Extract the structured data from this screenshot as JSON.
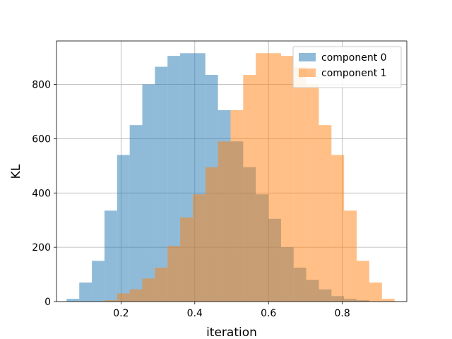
{
  "chart_data": {
    "type": "bar",
    "subtype": "overlapping-histogram",
    "title": "",
    "xlabel": "iteration",
    "ylabel": "KL",
    "xlim": [
      0.025,
      0.975
    ],
    "ylim": [
      0,
      960
    ],
    "xticks": [
      0.2,
      0.4,
      0.6,
      0.8
    ],
    "xtick_labels": [
      "0.2",
      "0.4",
      "0.6",
      "0.8"
    ],
    "yticks": [
      0,
      200,
      400,
      600,
      800
    ],
    "ytick_labels": [
      "0",
      "200",
      "400",
      "600",
      "800"
    ],
    "grid": true,
    "legend_position": "top-right",
    "bin_width": 0.0342,
    "series": [
      {
        "name": "component 0",
        "color": "#1f77b4",
        "opacity": 0.5,
        "bin_starts": [
          0.0525,
          0.0867,
          0.1209,
          0.1551,
          0.1893,
          0.2235,
          0.2577,
          0.2919,
          0.3261,
          0.3603,
          0.3945,
          0.4287,
          0.4629,
          0.4971,
          0.5313,
          0.5655,
          0.5997,
          0.6339,
          0.6681,
          0.7023,
          0.7365,
          0.7707,
          0.8049,
          0.8391
        ],
        "values": [
          10,
          70,
          150,
          335,
          540,
          650,
          800,
          865,
          905,
          915,
          915,
          835,
          705,
          590,
          495,
          395,
          305,
          200,
          125,
          80,
          45,
          20,
          10,
          5
        ]
      },
      {
        "name": "component 1",
        "color": "#ff7f0e",
        "opacity": 0.5,
        "bin_starts": [
          0.1551,
          0.1893,
          0.2235,
          0.2577,
          0.2919,
          0.3261,
          0.3603,
          0.3945,
          0.4287,
          0.4629,
          0.4971,
          0.5313,
          0.5655,
          0.5997,
          0.6339,
          0.6681,
          0.7023,
          0.7365,
          0.7707,
          0.8049,
          0.8391,
          0.8733,
          0.9075
        ],
        "values": [
          5,
          30,
          45,
          85,
          125,
          205,
          310,
          395,
          495,
          590,
          705,
          835,
          915,
          915,
          905,
          865,
          800,
          650,
          540,
          335,
          150,
          70,
          10
        ]
      }
    ]
  }
}
